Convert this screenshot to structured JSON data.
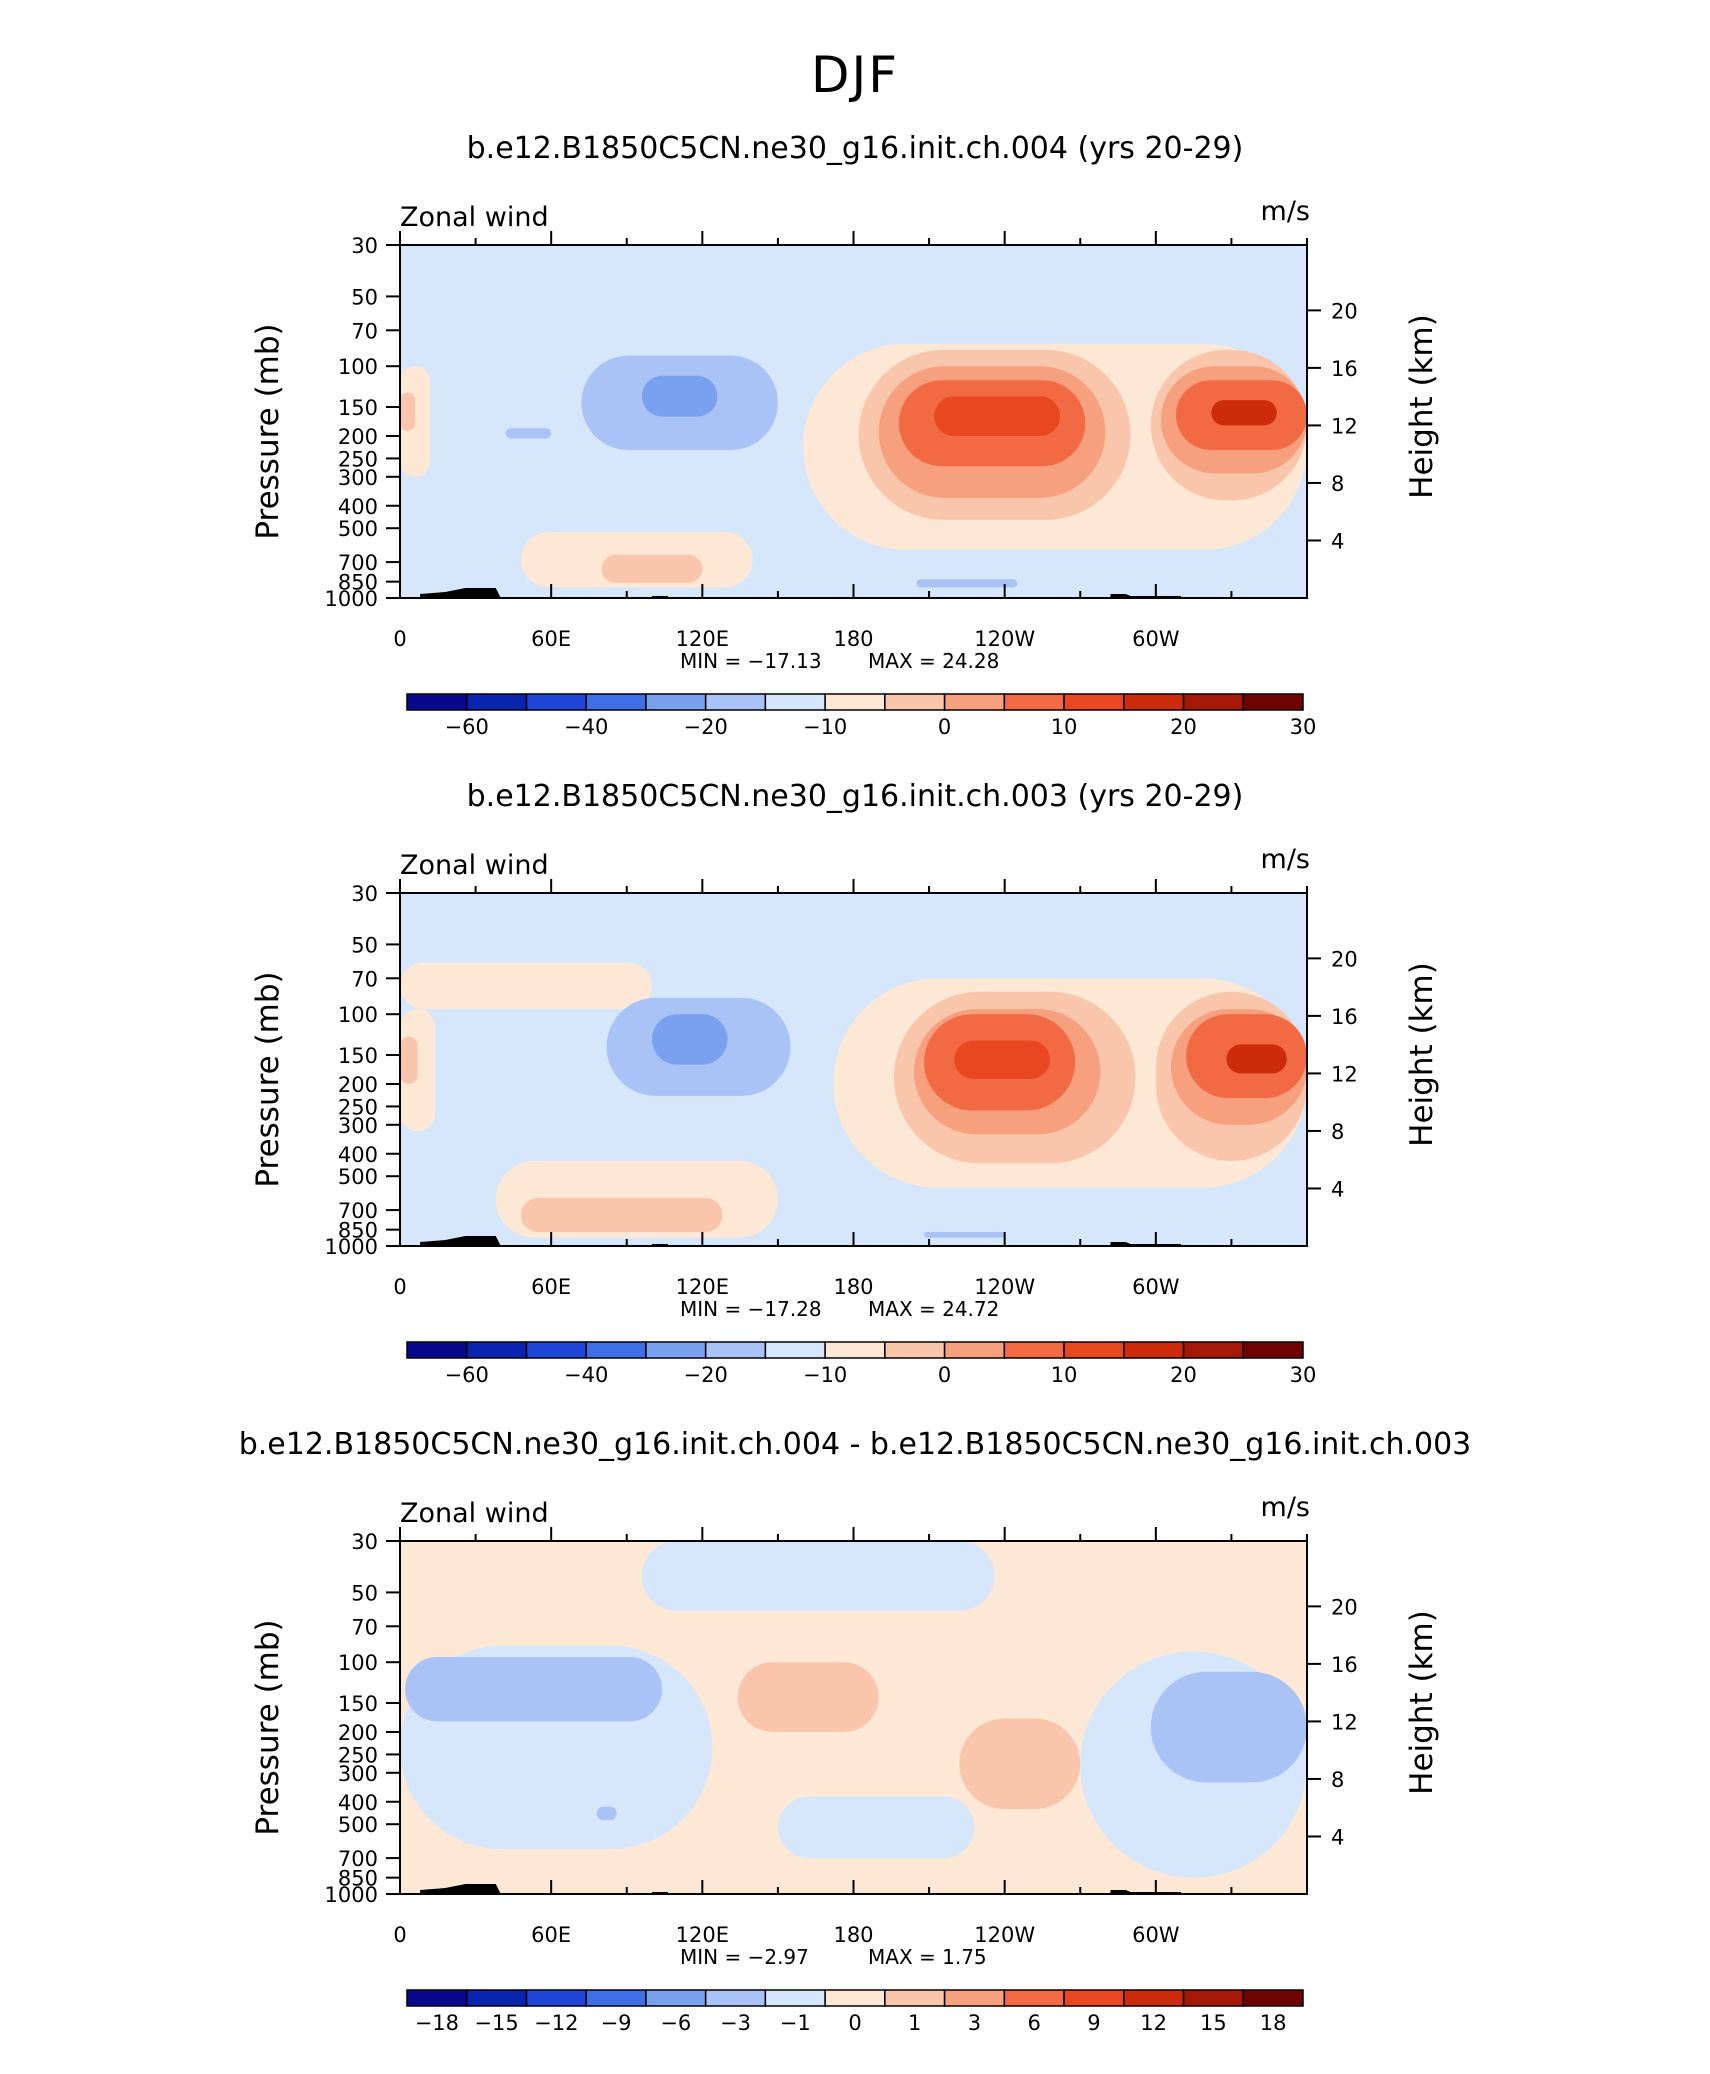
{
  "figure": {
    "title": "DJF",
    "variable_label": "Zonal wind",
    "units_label": "m/s"
  },
  "chart_data": [
    {
      "type": "heatmap",
      "title": "b.e12.B1850C5CN.ne30_g16.init.ch.004 (yrs 20-29)",
      "variable": "Zonal wind",
      "units": "m/s",
      "xlabel": "",
      "ylabel": "Pressure (mb)",
      "y2label": "Height (km)",
      "x_ticks": [
        "0",
        "60E",
        "120E",
        "180",
        "120W",
        "60W"
      ],
      "y_ticks": [
        "30",
        "50",
        "70",
        "100",
        "150",
        "200",
        "250",
        "300",
        "400",
        "500",
        "700",
        "850",
        "1000"
      ],
      "y2_ticks": [
        "20",
        "16",
        "12",
        "8",
        "4"
      ],
      "min_label": "MIN = −17.13",
      "max_label": "MAX =  24.28",
      "min": -17.13,
      "max": 24.28,
      "colorbar_labels": [
        "−60",
        "−40",
        "−20",
        "−10",
        "0",
        "10",
        "20",
        "30"
      ],
      "colorbar_colors": [
        "#08088c",
        "#0a24b0",
        "#1f46d8",
        "#3f6fe6",
        "#7aa0f0",
        "#a9c3f6",
        "#d6e6fb",
        "#fde8d6",
        "#f9c6ac",
        "#f7a07e",
        "#f26a44",
        "#e8471f",
        "#cc2b0c",
        "#a41808",
        "#6e0303"
      ],
      "regions": [
        {
          "value": -5,
          "level": 6,
          "x": [
            0,
            360
          ],
          "p": [
            30,
            1000
          ]
        },
        {
          "value": 3,
          "level": 7,
          "x": [
            0,
            12
          ],
          "p": [
            100,
            300
          ]
        },
        {
          "value": 8,
          "level": 8,
          "x": [
            0,
            6
          ],
          "p": [
            130,
            190
          ]
        },
        {
          "value": 2,
          "level": 7,
          "x": [
            48,
            140
          ],
          "p": [
            520,
            900
          ]
        },
        {
          "value": 6,
          "level": 8,
          "x": [
            80,
            120
          ],
          "p": [
            650,
            860
          ]
        },
        {
          "value": -10,
          "level": 5,
          "x": [
            72,
            150
          ],
          "p": [
            90,
            230
          ]
        },
        {
          "value": -15,
          "level": 4,
          "x": [
            96,
            126
          ],
          "p": [
            110,
            165
          ]
        },
        {
          "value": -10,
          "level": 5,
          "x": [
            42,
            60
          ],
          "p": [
            185,
            205
          ]
        },
        {
          "value": 3,
          "level": 7,
          "x": [
            160,
            360
          ],
          "p": [
            80,
            620
          ]
        },
        {
          "value": 8,
          "level": 8,
          "x": [
            182,
            290
          ],
          "p": [
            85,
            460
          ]
        },
        {
          "value": 8,
          "level": 8,
          "x": [
            298,
            360
          ],
          "p": [
            85,
            380
          ]
        },
        {
          "value": 12,
          "level": 9,
          "x": [
            190,
            280
          ],
          "p": [
            100,
            370
          ]
        },
        {
          "value": 12,
          "level": 9,
          "x": [
            302,
            360
          ],
          "p": [
            100,
            290
          ]
        },
        {
          "value": 17,
          "level": 10,
          "x": [
            198,
            272
          ],
          "p": [
            115,
            270
          ]
        },
        {
          "value": 17,
          "level": 10,
          "x": [
            308,
            360
          ],
          "p": [
            115,
            230
          ]
        },
        {
          "value": 22,
          "level": 11,
          "x": [
            212,
            262
          ],
          "p": [
            135,
            200
          ]
        },
        {
          "value": 24,
          "level": 12,
          "x": [
            322,
            348
          ],
          "p": [
            140,
            180
          ]
        },
        {
          "value": -10,
          "level": 5,
          "x": [
            205,
            245
          ],
          "p": [
            830,
            900
          ]
        }
      ]
    },
    {
      "type": "heatmap",
      "title": "b.e12.B1850C5CN.ne30_g16.init.ch.003 (yrs 20-29)",
      "variable": "Zonal wind",
      "units": "m/s",
      "xlabel": "",
      "ylabel": "Pressure (mb)",
      "y2label": "Height (km)",
      "x_ticks": [
        "0",
        "60E",
        "120E",
        "180",
        "120W",
        "60W"
      ],
      "y_ticks": [
        "30",
        "50",
        "70",
        "100",
        "150",
        "200",
        "250",
        "300",
        "400",
        "500",
        "700",
        "850",
        "1000"
      ],
      "y2_ticks": [
        "20",
        "16",
        "12",
        "8",
        "4"
      ],
      "min_label": "MIN = −17.28",
      "max_label": "MAX =  24.72",
      "min": -17.28,
      "max": 24.72,
      "colorbar_labels": [
        "−60",
        "−40",
        "−20",
        "−10",
        "0",
        "10",
        "20",
        "30"
      ],
      "colorbar_colors": [
        "#08088c",
        "#0a24b0",
        "#1f46d8",
        "#3f6fe6",
        "#7aa0f0",
        "#a9c3f6",
        "#d6e6fb",
        "#fde8d6",
        "#f9c6ac",
        "#f7a07e",
        "#f26a44",
        "#e8471f",
        "#cc2b0c",
        "#a41808",
        "#6e0303"
      ],
      "regions": [
        {
          "value": -5,
          "level": 6,
          "x": [
            0,
            360
          ],
          "p": [
            30,
            1000
          ]
        },
        {
          "value": 2,
          "level": 7,
          "x": [
            0,
            100
          ],
          "p": [
            60,
            95
          ]
        },
        {
          "value": 3,
          "level": 7,
          "x": [
            0,
            14
          ],
          "p": [
            95,
            320
          ]
        },
        {
          "value": 8,
          "level": 8,
          "x": [
            0,
            7
          ],
          "p": [
            125,
            200
          ]
        },
        {
          "value": 2,
          "level": 7,
          "x": [
            38,
            150
          ],
          "p": [
            430,
            920
          ]
        },
        {
          "value": 6,
          "level": 8,
          "x": [
            48,
            128
          ],
          "p": [
            620,
            870
          ]
        },
        {
          "value": -10,
          "level": 5,
          "x": [
            82,
            155
          ],
          "p": [
            85,
            225
          ]
        },
        {
          "value": -15,
          "level": 4,
          "x": [
            100,
            130
          ],
          "p": [
            100,
            165
          ]
        },
        {
          "value": 3,
          "level": 7,
          "x": [
            172,
            360
          ],
          "p": [
            70,
            560
          ]
        },
        {
          "value": 8,
          "level": 8,
          "x": [
            196,
            292
          ],
          "p": [
            80,
            440
          ]
        },
        {
          "value": 8,
          "level": 8,
          "x": [
            300,
            360
          ],
          "p": [
            80,
            430
          ]
        },
        {
          "value": 12,
          "level": 9,
          "x": [
            204,
            278
          ],
          "p": [
            95,
            330
          ]
        },
        {
          "value": 12,
          "level": 9,
          "x": [
            306,
            360
          ],
          "p": [
            95,
            300
          ]
        },
        {
          "value": 17,
          "level": 10,
          "x": [
            208,
            268
          ],
          "p": [
            100,
            260
          ]
        },
        {
          "value": 17,
          "level": 10,
          "x": [
            312,
            360
          ],
          "p": [
            100,
            230
          ]
        },
        {
          "value": 22,
          "level": 11,
          "x": [
            220,
            258
          ],
          "p": [
            130,
            190
          ]
        },
        {
          "value": 24,
          "level": 12,
          "x": [
            328,
            352
          ],
          "p": [
            135,
            180
          ]
        },
        {
          "value": -10,
          "level": 5,
          "x": [
            208,
            240
          ],
          "p": [
            870,
            920
          ]
        }
      ]
    },
    {
      "type": "heatmap",
      "title": "b.e12.B1850C5CN.ne30_g16.init.ch.004 - b.e12.B1850C5CN.ne30_g16.init.ch.003",
      "variable": "Zonal wind",
      "units": "m/s",
      "xlabel": "",
      "ylabel": "Pressure (mb)",
      "y2label": "Height (km)",
      "x_ticks": [
        "0",
        "60E",
        "120E",
        "180",
        "120W",
        "60W"
      ],
      "y_ticks": [
        "30",
        "50",
        "70",
        "100",
        "150",
        "200",
        "250",
        "300",
        "400",
        "500",
        "700",
        "850",
        "1000"
      ],
      "y2_ticks": [
        "20",
        "16",
        "12",
        "8",
        "4"
      ],
      "min_label": "MIN =   −2.97",
      "max_label": "MAX =    1.75",
      "min": -2.97,
      "max": 1.75,
      "colorbar_labels": [
        "−18",
        "−15",
        "−12",
        "−9",
        "−6",
        "−3",
        "−1",
        "0",
        "1",
        "3",
        "6",
        "9",
        "12",
        "15",
        "18"
      ],
      "colorbar_colors": [
        "#08088c",
        "#0a24b0",
        "#1f46d8",
        "#3f6fe6",
        "#7aa0f0",
        "#a9c3f6",
        "#d6e6fb",
        "#fde8d6",
        "#f9c6ac",
        "#f7a07e",
        "#f26a44",
        "#e8471f",
        "#cc2b0c",
        "#a41808",
        "#6e0303"
      ],
      "regions": [
        {
          "value": 0.5,
          "level": 7,
          "x": [
            0,
            360
          ],
          "p": [
            30,
            1000
          ]
        },
        {
          "value": -0.5,
          "level": 6,
          "x": [
            96,
            236
          ],
          "p": [
            30,
            60
          ]
        },
        {
          "value": -0.5,
          "level": 6,
          "x": [
            0,
            124
          ],
          "p": [
            85,
            640
          ]
        },
        {
          "value": -1.5,
          "level": 5,
          "x": [
            2,
            104
          ],
          "p": [
            95,
            180
          ]
        },
        {
          "value": -0.5,
          "level": 6,
          "x": [
            150,
            228
          ],
          "p": [
            380,
            700
          ]
        },
        {
          "value": -0.5,
          "level": 6,
          "x": [
            270,
            360
          ],
          "p": [
            90,
            850
          ]
        },
        {
          "value": -1.5,
          "level": 5,
          "x": [
            298,
            360
          ],
          "p": [
            110,
            330
          ]
        },
        {
          "value": 1.5,
          "level": 8,
          "x": [
            134,
            190
          ],
          "p": [
            100,
            200
          ]
        },
        {
          "value": 1.5,
          "level": 8,
          "x": [
            222,
            270
          ],
          "p": [
            175,
            430
          ]
        },
        {
          "value": -1.5,
          "level": 5,
          "x": [
            78,
            86
          ],
          "p": [
            420,
            480
          ]
        }
      ]
    }
  ]
}
